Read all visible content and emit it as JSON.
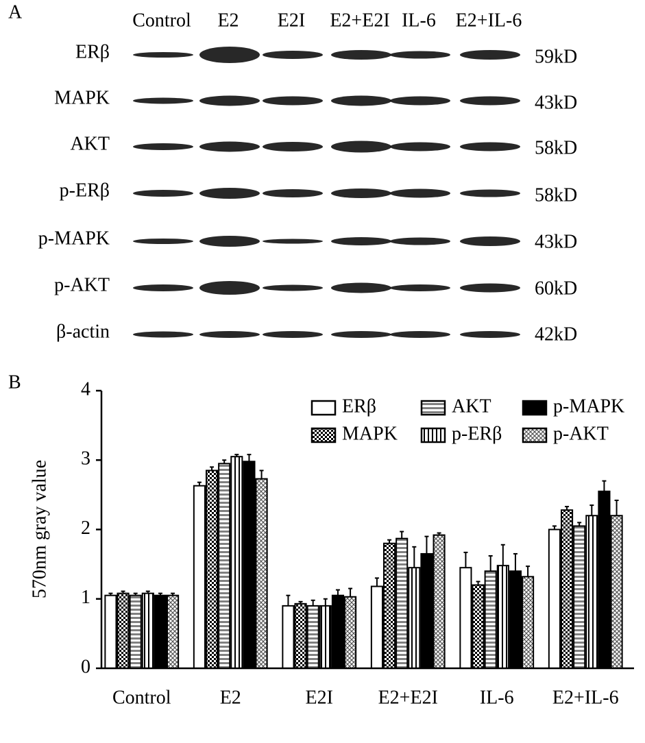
{
  "blot": {
    "panel_label": "A",
    "lanes": [
      "Control",
      "E2",
      "E2I",
      "E2+E2I",
      "IL-6",
      "E2+IL-6"
    ],
    "proteins": [
      {
        "name": "ERβ",
        "size": "59kD"
      },
      {
        "name": "MAPK",
        "size": "43kD"
      },
      {
        "name": "AKT",
        "size": "58kD"
      },
      {
        "name": "p-ERβ",
        "size": "58kD"
      },
      {
        "name": "p-MAPK",
        "size": "43kD"
      },
      {
        "name": "p-AKT",
        "size": "60kD"
      },
      {
        "name": "β-actin",
        "size": "42kD"
      }
    ]
  },
  "chart_data": {
    "type": "bar",
    "panel_label": "B",
    "ylabel": "570nm gray value",
    "categories": [
      "Control",
      "E2",
      "E2I",
      "E2+E2I",
      "IL-6",
      "E2+IL-6"
    ],
    "series": [
      {
        "name": "ERβ",
        "color": "#ffffff",
        "pattern": "solid",
        "values": [
          1.05,
          2.63,
          0.9,
          1.18,
          1.45,
          2.0
        ],
        "errors": [
          0.03,
          0.05,
          0.15,
          0.12,
          0.22,
          0.05
        ]
      },
      {
        "name": "MAPK",
        "color": "#000000",
        "pattern": "checker",
        "values": [
          1.08,
          2.85,
          0.93,
          1.8,
          1.2,
          2.28
        ],
        "errors": [
          0.03,
          0.05,
          0.03,
          0.05,
          0.05,
          0.05
        ]
      },
      {
        "name": "AKT",
        "color": "#808080",
        "pattern": "hstripe",
        "values": [
          1.05,
          2.95,
          0.9,
          1.87,
          1.4,
          2.05
        ],
        "errors": [
          0.03,
          0.05,
          0.08,
          0.1,
          0.22,
          0.05
        ]
      },
      {
        "name": "p-ERβ",
        "color": "#000000",
        "pattern": "vstripe",
        "values": [
          1.08,
          3.05,
          0.9,
          1.45,
          1.48,
          2.2
        ],
        "errors": [
          0.03,
          0.03,
          0.1,
          0.3,
          0.3,
          0.15
        ]
      },
      {
        "name": "p-MAPK",
        "color": "#000000",
        "pattern": "solid",
        "values": [
          1.05,
          2.98,
          1.05,
          1.65,
          1.4,
          2.55
        ],
        "errors": [
          0.03,
          0.1,
          0.08,
          0.25,
          0.25,
          0.15
        ]
      },
      {
        "name": "p-AKT",
        "color": "#555555",
        "pattern": "crosshatch",
        "values": [
          1.05,
          2.73,
          1.03,
          1.92,
          1.32,
          2.2
        ],
        "errors": [
          0.03,
          0.12,
          0.12,
          0.03,
          0.15,
          0.22
        ]
      }
    ],
    "ylim": [
      0,
      4
    ],
    "yticks": [
      0,
      1,
      2,
      3,
      4
    ],
    "grid": false,
    "legend": "upper right"
  }
}
